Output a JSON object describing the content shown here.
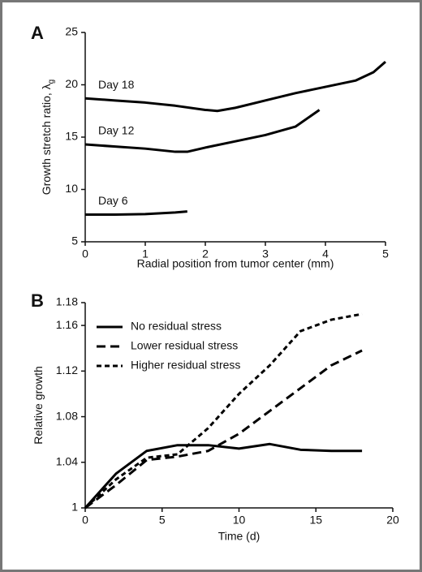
{
  "chart_data": [
    {
      "type": "line",
      "panel": "A",
      "xlabel": "Radial position from tumor center (mm)",
      "ylabel": "Growth stretch ratio, λ",
      "ylabel_subscript": "g",
      "xlim": [
        0,
        5
      ],
      "ylim": [
        5,
        25
      ],
      "xticks": [
        0,
        1,
        2,
        3,
        4,
        5
      ],
      "yticks": [
        5,
        10,
        15,
        20,
        25
      ],
      "series_labels": "inline",
      "series": [
        {
          "name": "Day 18",
          "color": "#000000",
          "line_style": "solid",
          "x": [
            0,
            0.5,
            1,
            1.5,
            2,
            2.2,
            2.5,
            3,
            3.5,
            4,
            4.5,
            4.8,
            5
          ],
          "values": [
            18.7,
            18.5,
            18.3,
            18.0,
            17.6,
            17.5,
            17.8,
            18.5,
            19.2,
            19.8,
            20.4,
            21.2,
            22.2
          ]
        },
        {
          "name": "Day 12",
          "color": "#000000",
          "line_style": "solid",
          "x": [
            0,
            0.5,
            1,
            1.5,
            1.7,
            2,
            2.5,
            3,
            3.5,
            3.9
          ],
          "values": [
            14.3,
            14.1,
            13.9,
            13.6,
            13.6,
            14.0,
            14.6,
            15.2,
            16.0,
            17.6
          ]
        },
        {
          "name": "Day 6",
          "color": "#000000",
          "line_style": "solid",
          "x": [
            0,
            0.5,
            1,
            1.5,
            1.7
          ],
          "values": [
            7.6,
            7.6,
            7.65,
            7.8,
            7.9
          ]
        }
      ]
    },
    {
      "type": "line",
      "panel": "B",
      "xlabel": "Time (d)",
      "ylabel": "Relative growth",
      "xlim": [
        0,
        20
      ],
      "ylim": [
        1,
        1.18
      ],
      "xticks": [
        0,
        5,
        10,
        15,
        20
      ],
      "yticks": [
        1,
        1.04,
        1.08,
        1.12,
        1.16,
        1.18
      ],
      "legend": "top-left",
      "series": [
        {
          "name": "No residual stress",
          "color": "#000000",
          "line_style": "solid",
          "x": [
            0,
            2,
            4,
            6,
            8,
            10,
            12,
            14,
            16,
            18
          ],
          "values": [
            1.0,
            1.03,
            1.05,
            1.055,
            1.055,
            1.052,
            1.056,
            1.051,
            1.05,
            1.05
          ]
        },
        {
          "name": "Lower residual stress",
          "color": "#000000",
          "line_style": "dashed",
          "x": [
            0,
            2,
            4,
            6,
            8,
            10,
            12,
            14,
            16,
            18
          ],
          "values": [
            1.0,
            1.02,
            1.042,
            1.045,
            1.05,
            1.065,
            1.085,
            1.105,
            1.125,
            1.138
          ]
        },
        {
          "name": "Higher residual stress",
          "color": "#000000",
          "line_style": "short-dashed",
          "x": [
            0,
            2,
            4,
            6,
            8,
            10,
            12,
            14,
            16,
            18
          ],
          "values": [
            1.0,
            1.025,
            1.044,
            1.047,
            1.07,
            1.1,
            1.125,
            1.155,
            1.165,
            1.17
          ]
        }
      ]
    }
  ]
}
